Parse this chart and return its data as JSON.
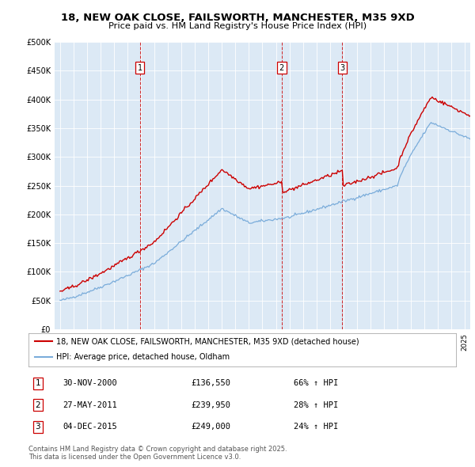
{
  "title_line1": "18, NEW OAK CLOSE, FAILSWORTH, MANCHESTER, M35 9XD",
  "title_line2": "Price paid vs. HM Land Registry's House Price Index (HPI)",
  "legend_line1": "18, NEW OAK CLOSE, FAILSWORTH, MANCHESTER, M35 9XD (detached house)",
  "legend_line2": "HPI: Average price, detached house, Oldham",
  "ann1_label": "1",
  "ann1_date": "30-NOV-2000",
  "ann1_amount": "£136,550",
  "ann1_pct": "66% ↑ HPI",
  "ann2_label": "2",
  "ann2_date": "27-MAY-2011",
  "ann2_amount": "£239,950",
  "ann2_pct": "28% ↑ HPI",
  "ann3_label": "3",
  "ann3_date": "04-DEC-2015",
  "ann3_amount": "£249,000",
  "ann3_pct": "24% ↑ HPI",
  "footer": "Contains HM Land Registry data © Crown copyright and database right 2025.\nThis data is licensed under the Open Government Licence v3.0.",
  "red_color": "#cc0000",
  "blue_color": "#7aacda",
  "plot_bg": "#dce9f5",
  "ylim": [
    0,
    500000
  ],
  "yticks": [
    0,
    50000,
    100000,
    150000,
    200000,
    250000,
    300000,
    350000,
    400000,
    450000,
    500000
  ],
  "sale1_year": 2000.917,
  "sale2_year": 2011.417,
  "sale3_year": 2015.917
}
